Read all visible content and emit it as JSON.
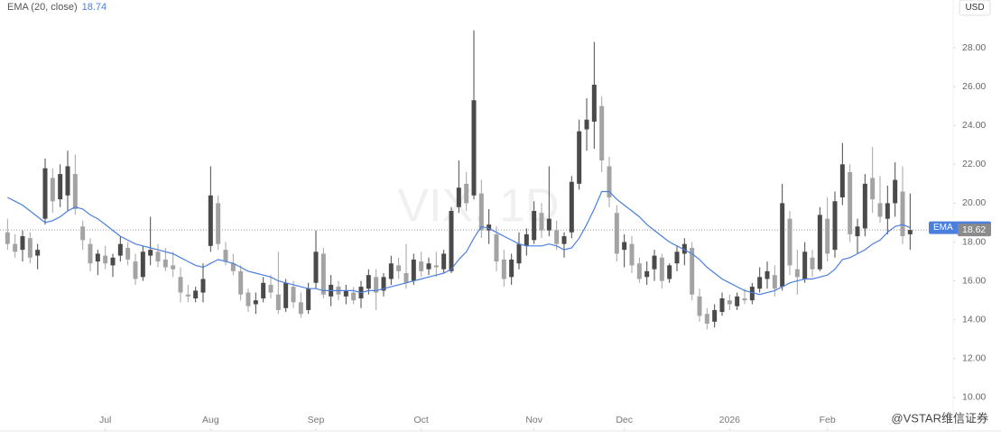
{
  "chart_data": {
    "type": "candlestick",
    "watermark": "VIX, 1D",
    "indicator_header": "EMA (20, close)",
    "indicator_name": "EMA",
    "indicator_value": 18.74,
    "currency": "USD",
    "brand": "@VSTAR维信证券",
    "last_price": 18.62,
    "up_color": "#4a4a4a",
    "down_color": "#a3a3a3",
    "ema_color": "#4a7fe0",
    "last_color": "#8a8a8a",
    "xlim": [
      -1,
      125.6
    ],
    "xticks": [
      {
        "value": 13,
        "label": "Jul"
      },
      {
        "value": 27,
        "label": "Aug"
      },
      {
        "value": 41,
        "label": "Sep"
      },
      {
        "value": 55,
        "label": "Oct"
      },
      {
        "value": 70,
        "label": "Nov"
      },
      {
        "value": 82,
        "label": "Dec"
      },
      {
        "value": 96,
        "label": "2026"
      },
      {
        "value": 109,
        "label": "Feb"
      }
    ],
    "ylim": [
      8.28,
      30.46
    ],
    "yticks": [
      {
        "value": 10,
        "label": "10.00"
      },
      {
        "value": 12,
        "label": "12.00"
      },
      {
        "value": 14,
        "label": "14.00"
      },
      {
        "value": 16,
        "label": "16.00"
      },
      {
        "value": 18,
        "label": "18.00"
      },
      {
        "value": 20,
        "label": "20.00"
      },
      {
        "value": 22,
        "label": "22.00"
      },
      {
        "value": 24,
        "label": "24.00"
      },
      {
        "value": 26,
        "label": "26.00"
      },
      {
        "value": 28,
        "label": "28.00"
      }
    ],
    "open": [
      18.5,
      17.9,
      17.6,
      18.2,
      17.3,
      19.2,
      21.3,
      20.2,
      20.4,
      21.5,
      18.8,
      17.9,
      17.0,
      17.3,
      16.8,
      17.3,
      17.7,
      17.0,
      16.2,
      17.3,
      17.5,
      17.1,
      16.8,
      16.2,
      15.3,
      15.1,
      15.4,
      17.8,
      20.0,
      17.6,
      16.9,
      16.5,
      15.4,
      14.8,
      15.1,
      15.8,
      15.3,
      14.6,
      15.7,
      14.9,
      14.5,
      15.9,
      17.4,
      15.2,
      15.7,
      15.2,
      15.4,
      15.1,
      15.6,
      16.2,
      15.5,
      16.1,
      16.8,
      16.4,
      16.0,
      17.0,
      16.6,
      16.8,
      16.6,
      16.5,
      19.8,
      21.0,
      20.4,
      20.5,
      18.6,
      18.4,
      17.1,
      16.2,
      16.9,
      17.8,
      18.1,
      19.5,
      18.6,
      18.6,
      17.9,
      18.5,
      21.0,
      23.8,
      24.2,
      25.0,
      21.9,
      19.5,
      17.6,
      17.9,
      16.9,
      16.2,
      16.6,
      17.2,
      16.1,
      16.9,
      17.4,
      17.7,
      15.2,
      14.3,
      13.9,
      14.4,
      15.0,
      14.7,
      15.1,
      15.0,
      15.6,
      16.1,
      16.3,
      15.7,
      19.2,
      16.6,
      16.1,
      17.2,
      16.6,
      19.2,
      17.6,
      20.3,
      21.6,
      18.3,
      18.7,
      21.3,
      20.0,
      19.2,
      20.0,
      20.6,
      18.4
    ],
    "high": [
      19.2,
      18.4,
      18.6,
      18.5,
      17.9,
      22.3,
      21.8,
      22.0,
      22.7,
      22.5,
      19.1,
      18.2,
      17.6,
      17.8,
      17.4,
      18.3,
      18.0,
      17.4,
      17.8,
      19.3,
      17.9,
      17.7,
      17.5,
      16.7,
      15.8,
      15.7,
      16.9,
      21.9,
      20.4,
      18.0,
      17.4,
      16.8,
      15.6,
      15.4,
      16.2,
      16.3,
      17.5,
      16.1,
      16.0,
      15.4,
      15.9,
      18.6,
      17.7,
      16.3,
      16.0,
      15.8,
      15.7,
      16.0,
      16.6,
      16.6,
      16.4,
      17.3,
      17.2,
      17.9,
      17.4,
      17.5,
      17.2,
      17.5,
      17.6,
      19.8,
      22.2,
      21.6,
      28.9,
      21.2,
      19.7,
      18.8,
      17.6,
      17.4,
      18.5,
      18.7,
      20.1,
      20.0,
      21.9,
      19.1,
      18.5,
      21.4,
      24.3,
      25.4,
      28.3,
      25.5,
      22.4,
      19.9,
      18.4,
      18.3,
      17.2,
      17.0,
      17.6,
      17.4,
      16.9,
      17.8,
      18.2,
      18.0,
      15.6,
      14.6,
      14.8,
      15.4,
      15.3,
      15.4,
      15.6,
      15.9,
      16.7,
      17.0,
      16.8,
      21.0,
      19.6,
      17.6,
      18.0,
      17.6,
      19.8,
      20.3,
      20.6,
      23.1,
      22.0,
      19.2,
      21.5,
      22.9,
      21.4,
      20.9,
      22.1,
      21.9,
      20.5
    ],
    "low": [
      17.6,
      17.2,
      17.0,
      16.9,
      16.6,
      18.9,
      19.5,
      19.8,
      19.6,
      19.4,
      17.6,
      16.5,
      16.3,
      16.6,
      16.2,
      17.0,
      16.8,
      15.8,
      16.0,
      16.8,
      16.7,
      16.5,
      16.2,
      14.9,
      14.9,
      14.9,
      14.9,
      17.5,
      17.6,
      16.8,
      16.3,
      15.0,
      14.4,
      14.3,
      14.9,
      15.1,
      14.3,
      14.4,
      14.6,
      14.1,
      14.3,
      15.6,
      15.1,
      14.7,
      15.0,
      14.8,
      14.8,
      14.6,
      15.3,
      14.5,
      15.2,
      15.8,
      16.1,
      15.6,
      15.8,
      16.2,
      16.3,
      16.2,
      16.4,
      16.4,
      19.5,
      19.6,
      20.2,
      18.2,
      17.9,
      16.5,
      15.7,
      15.8,
      16.6,
      17.3,
      17.9,
      18.2,
      18.3,
      17.6,
      17.2,
      18.2,
      20.7,
      22.7,
      22.8,
      21.6,
      19.8,
      17.0,
      16.7,
      16.4,
      15.9,
      15.8,
      16.0,
      15.6,
      15.9,
      16.5,
      16.8,
      15.0,
      13.9,
      13.5,
      13.6,
      14.2,
      14.5,
      14.5,
      14.8,
      14.8,
      15.4,
      15.6,
      15.2,
      15.5,
      16.3,
      15.3,
      15.9,
      16.2,
      16.5,
      17.0,
      17.2,
      19.9,
      18.0,
      17.4,
      18.3,
      19.5,
      19.0,
      18.4,
      19.3,
      17.9,
      17.6
    ],
    "close": [
      17.9,
      17.5,
      18.3,
      17.2,
      17.6,
      21.8,
      20.1,
      21.5,
      21.9,
      19.7,
      18.1,
      16.9,
      17.4,
      16.9,
      17.2,
      17.9,
      17.1,
      16.1,
      17.5,
      17.6,
      17.0,
      16.7,
      16.6,
      15.4,
      15.2,
      15.5,
      16.1,
      20.4,
      17.9,
      17.0,
      16.5,
      15.3,
      14.7,
      15.0,
      15.9,
      15.4,
      14.5,
      15.9,
      14.9,
      14.3,
      15.6,
      17.5,
      15.3,
      15.8,
      15.3,
      15.5,
      15.0,
      15.7,
      16.3,
      15.4,
      16.2,
      16.9,
      16.5,
      15.9,
      17.1,
      16.5,
      16.9,
      16.7,
      17.4,
      19.6,
      20.8,
      20.0,
      25.3,
      18.6,
      18.9,
      17.0,
      16.1,
      17.1,
      17.9,
      18.4,
      19.6,
      18.6,
      19.2,
      17.9,
      18.3,
      21.1,
      23.7,
      24.3,
      26.1,
      22.2,
      20.3,
      17.4,
      18.0,
      16.8,
      16.1,
      16.5,
      17.3,
      16.0,
      16.8,
      17.5,
      17.9,
      15.3,
      14.2,
      13.8,
      14.5,
      15.1,
      14.8,
      15.2,
      15.0,
      15.7,
      16.2,
      16.5,
      15.6,
      20.0,
      16.8,
      16.2,
      17.5,
      16.6,
      19.4,
      17.4,
      20.1,
      22.0,
      18.4,
      18.8,
      21.0,
      20.2,
      19.3,
      20.0,
      21.2,
      18.3,
      18.62
    ],
    "ema_values": [
      20.3,
      20.1,
      19.9,
      19.6,
      19.3,
      19.0,
      19.1,
      19.3,
      19.6,
      19.8,
      19.7,
      19.4,
      19.2,
      18.9,
      18.6,
      18.3,
      18.1,
      17.9,
      17.8,
      17.7,
      17.6,
      17.5,
      17.4,
      17.2,
      17.0,
      16.8,
      16.7,
      16.9,
      17.1,
      17.0,
      16.9,
      16.7,
      16.5,
      16.4,
      16.3,
      16.2,
      16.0,
      15.9,
      15.8,
      15.7,
      15.6,
      15.6,
      15.5,
      15.5,
      15.5,
      15.5,
      15.5,
      15.4,
      15.5,
      15.5,
      15.6,
      15.7,
      15.8,
      15.9,
      16.0,
      16.1,
      16.2,
      16.3,
      16.4,
      16.6,
      17.1,
      17.5,
      18.2,
      18.8,
      18.7,
      18.5,
      18.3,
      18.1,
      17.9,
      17.8,
      17.8,
      17.8,
      17.9,
      17.8,
      17.6,
      17.7,
      18.2,
      18.9,
      19.7,
      20.6,
      20.6,
      20.2,
      19.9,
      19.6,
      19.3,
      18.9,
      18.6,
      18.3,
      18.0,
      17.8,
      17.6,
      17.4,
      17.1,
      16.7,
      16.4,
      16.1,
      15.9,
      15.7,
      15.5,
      15.4,
      15.3,
      15.4,
      15.5,
      15.7,
      15.9,
      16.0,
      16.1,
      16.1,
      16.2,
      16.3,
      16.6,
      17.1,
      17.2,
      17.4,
      17.6,
      17.9,
      18.1,
      18.5,
      18.8,
      18.9,
      18.74
    ]
  }
}
